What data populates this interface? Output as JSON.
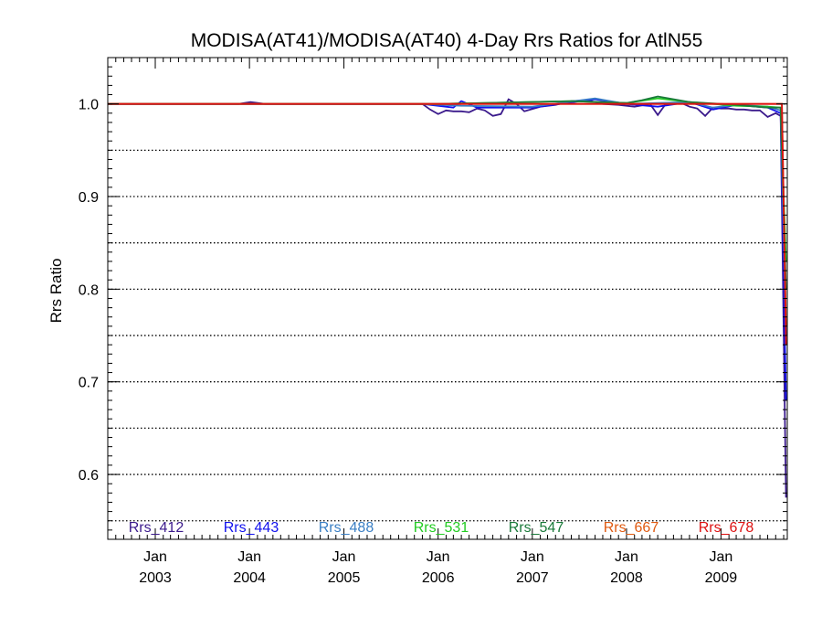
{
  "chart_data": {
    "type": "line",
    "title": "MODISA(AT41)/MODISA(AT40) 4-Day Rrs Ratios for AtlN55",
    "xlabel": "",
    "ylabel": "Rrs Ratio",
    "xlim": [
      "2002-07-01",
      "2009-09-15"
    ],
    "ylim": [
      0.53,
      1.05
    ],
    "yticks": [
      "0.6",
      "0.7",
      "0.8",
      "0.9",
      "1.0"
    ],
    "ytick_values": [
      0.6,
      0.7,
      0.8,
      0.9,
      1.0
    ],
    "gridlines": [
      0.55,
      0.6,
      0.65,
      0.7,
      0.75,
      0.8,
      0.85,
      0.9,
      0.95,
      1.0
    ],
    "grid": "horizontal dotted",
    "xticks": [
      {
        "date": "2003-01-01",
        "month": "Jan",
        "year": "2003"
      },
      {
        "date": "2004-01-01",
        "month": "Jan",
        "year": "2004"
      },
      {
        "date": "2005-01-01",
        "month": "Jan",
        "year": "2005"
      },
      {
        "date": "2006-01-01",
        "month": "Jan",
        "year": "2006"
      },
      {
        "date": "2007-01-01",
        "month": "Jan",
        "year": "2007"
      },
      {
        "date": "2008-01-01",
        "month": "Jan",
        "year": "2008"
      },
      {
        "date": "2009-01-01",
        "month": "Jan",
        "year": "2009"
      }
    ],
    "legend_placement": "bottom inside",
    "series": [
      {
        "name": "Rrs_412",
        "color": "#3b1a8c",
        "x": [
          "2002-07-01",
          "2003-11-20",
          "2004-01-05",
          "2004-03-01",
          "2005-01-01",
          "2005-11-01",
          "2005-12-01",
          "2006-01-01",
          "2006-02-01",
          "2006-03-01",
          "2006-04-01",
          "2006-05-01",
          "2006-06-01",
          "2006-07-01",
          "2006-08-01",
          "2006-09-01",
          "2006-10-01",
          "2006-11-01",
          "2006-12-01",
          "2007-02-01",
          "2007-04-01",
          "2007-06-01",
          "2007-08-01",
          "2007-10-01",
          "2007-12-01",
          "2008-02-01",
          "2008-04-01",
          "2008-05-01",
          "2008-06-01",
          "2008-08-01",
          "2008-09-01",
          "2008-10-01",
          "2008-11-01",
          "2008-12-01",
          "2009-01-01",
          "2009-02-01",
          "2009-03-01",
          "2009-04-01",
          "2009-05-01",
          "2009-06-01",
          "2009-07-01",
          "2009-08-01",
          "2009-08-20",
          "2009-09-10"
        ],
        "y": [
          1.0,
          1.0,
          1.002,
          1.0,
          1.0,
          1.0,
          0.994,
          0.989,
          0.993,
          0.992,
          0.992,
          0.991,
          0.995,
          0.993,
          0.987,
          0.989,
          1.005,
          1.0,
          0.992,
          0.997,
          0.999,
          1.003,
          1.004,
          1.0,
          0.999,
          0.997,
          1.0,
          0.988,
          1.0,
          1.001,
          0.997,
          0.995,
          0.987,
          0.996,
          0.995,
          0.995,
          0.994,
          0.994,
          0.993,
          0.993,
          0.986,
          0.99,
          0.987,
          0.575
        ]
      },
      {
        "name": "Rrs_443",
        "color": "#1010ee",
        "x": [
          "2002-07-01",
          "2005-11-01",
          "2006-03-01",
          "2006-04-01",
          "2006-06-01",
          "2007-01-01",
          "2007-09-01",
          "2008-01-01",
          "2008-05-01",
          "2008-09-01",
          "2008-12-01",
          "2009-03-01",
          "2009-07-01",
          "2009-08-20",
          "2009-09-10"
        ],
        "y": [
          1.0,
          1.0,
          0.996,
          1.003,
          0.996,
          0.996,
          1.005,
          1.0,
          0.997,
          1.002,
          0.994,
          0.999,
          0.996,
          0.99,
          0.68
        ]
      },
      {
        "name": "Rrs_488",
        "color": "#3a7fc4",
        "x": [
          "2002-07-01",
          "2005-11-01",
          "2006-04-01",
          "2007-01-01",
          "2007-09-01",
          "2008-01-01",
          "2008-09-01",
          "2008-12-01",
          "2009-03-01",
          "2009-07-01",
          "2009-08-20",
          "2009-09-10"
        ],
        "y": [
          1.0,
          1.0,
          0.998,
          0.997,
          1.006,
          1.0,
          1.002,
          0.996,
          0.999,
          0.997,
          0.993,
          0.75
        ]
      },
      {
        "name": "Rrs_531",
        "color": "#22cc22",
        "x": [
          "2002-07-01",
          "2006-01-01",
          "2007-06-01",
          "2008-01-01",
          "2008-05-01",
          "2008-09-01",
          "2009-03-01",
          "2009-07-01",
          "2009-08-20",
          "2009-09-10"
        ],
        "y": [
          1.0,
          1.0,
          1.003,
          1.001,
          1.006,
          1.002,
          0.998,
          0.997,
          0.996,
          0.83
        ]
      },
      {
        "name": "Rrs_547",
        "color": "#1a7a3a",
        "x": [
          "2002-07-01",
          "2006-01-01",
          "2007-06-01",
          "2008-01-01",
          "2008-03-01",
          "2008-05-01",
          "2008-09-01",
          "2009-03-01",
          "2009-07-01",
          "2009-08-20",
          "2009-09-10"
        ],
        "y": [
          1.0,
          1.0,
          1.003,
          1.001,
          1.004,
          1.008,
          1.002,
          0.999,
          0.996,
          0.996,
          0.8
        ]
      },
      {
        "name": "Rrs_667",
        "color": "#e05a10",
        "x": [
          "2002-07-01",
          "2009-08-25",
          "2009-09-10"
        ],
        "y": [
          1.0,
          1.0,
          0.76
        ]
      },
      {
        "name": "Rrs_678",
        "color": "#dd1111",
        "x": [
          "2002-07-01",
          "2009-08-25",
          "2009-09-10"
        ],
        "y": [
          1.0,
          1.0,
          0.74
        ]
      }
    ]
  }
}
